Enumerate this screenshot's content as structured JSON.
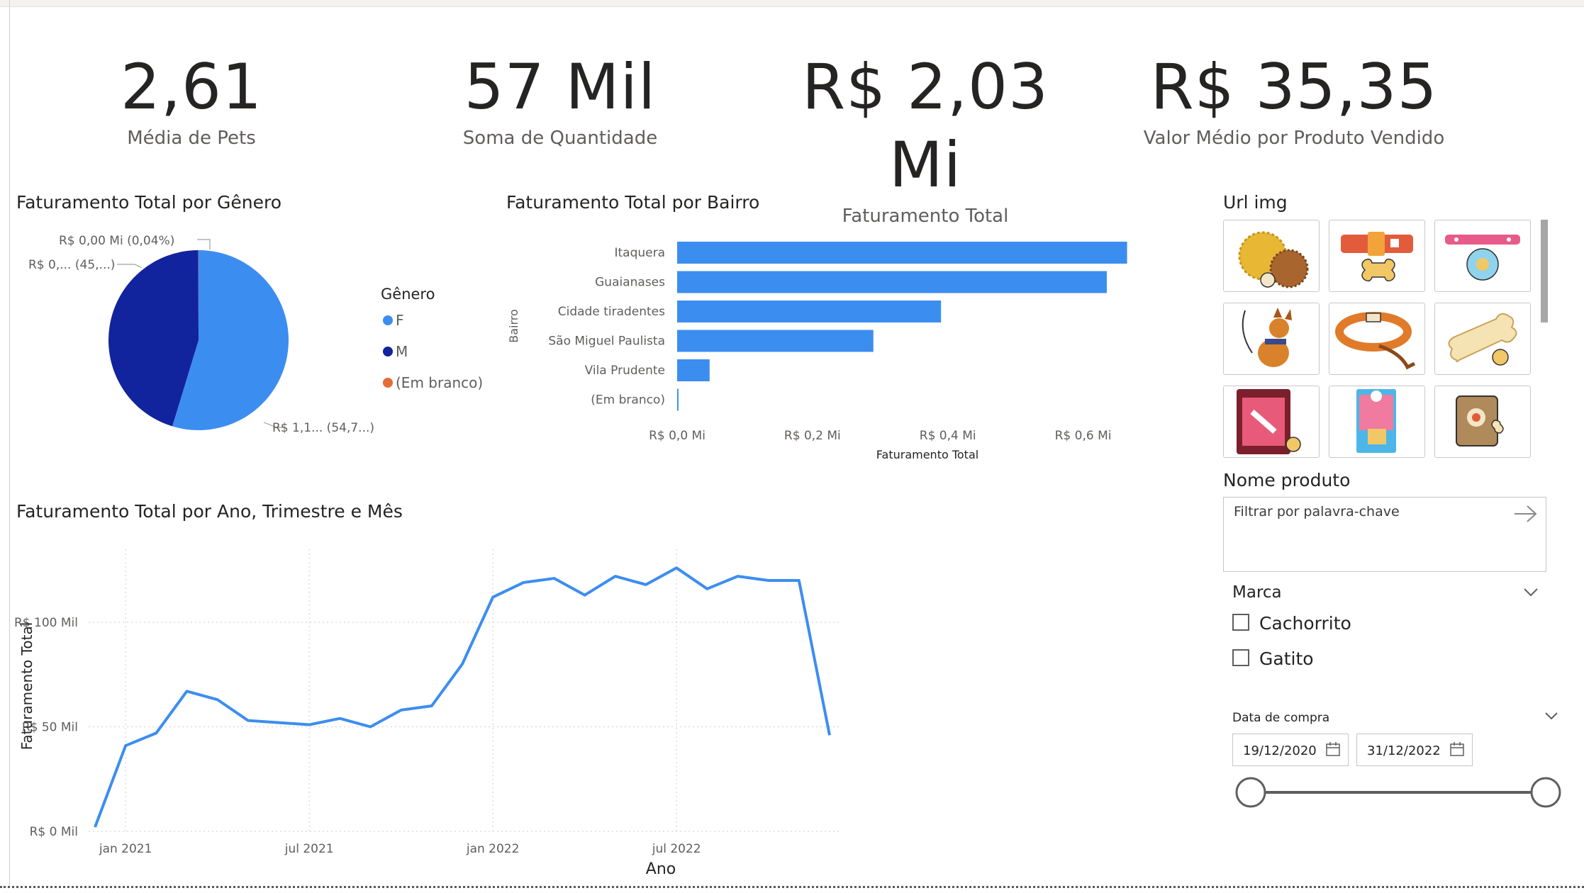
{
  "kpis": [
    {
      "value": "2,61",
      "label": "Média de Pets"
    },
    {
      "value": "57 Mil",
      "label": "Soma de Quantidade"
    },
    {
      "value": "R$ 2,03 Mi",
      "label": "Faturamento Total"
    },
    {
      "value": "R$ 35,35",
      "label": "Valor Médio por Produto Vendido"
    }
  ],
  "gender_chart": {
    "title": "Faturamento Total por Gênero",
    "legend_title": "Gênero",
    "legend": [
      "F",
      "M",
      "(Em branco)"
    ],
    "labels": {
      "blank": "R$ 0,00 Mi (0,04%)",
      "m": "R$ 0,... (45,...)",
      "f": "R$ 1,1... (54,7...)"
    },
    "colors": {
      "F": "#3c8df0",
      "M": "#12239e",
      "blank": "#e66c37"
    }
  },
  "bairro_chart": {
    "title": "Faturamento Total por Bairro",
    "ylabel": "Bairro",
    "xlabel": "Faturamento Total",
    "xticks": [
      "R$ 0,0 Mi",
      "R$ 0,2 Mi",
      "R$ 0,4 Mi",
      "R$ 0,6 Mi"
    ]
  },
  "line_chart": {
    "title": "Faturamento Total por Ano, Trimestre e Mês",
    "ylabel": "Faturamento Total",
    "xlabel": "Ano",
    "yticks": [
      "R$ 100 Mil",
      "R$ 50 Mil",
      "R$ 0 Mil"
    ],
    "xticks": [
      "jan 2021",
      "jul 2021",
      "jan 2022",
      "jul 2022"
    ]
  },
  "chart_data": [
    {
      "type": "pie",
      "categories": [
        "F",
        "M",
        "(Em branco)"
      ],
      "values": [
        54.7,
        45.26,
        0.04
      ],
      "value_unit": "%",
      "colors": [
        "#3c8df0",
        "#12239e",
        "#e66c37"
      ]
    },
    {
      "type": "bar",
      "orientation": "horizontal",
      "categories": [
        "Itaquera",
        "Guaianases",
        "Cidade tiradentes",
        "São Miguel Paulista",
        "Vila Prudente",
        "(Em branco)"
      ],
      "values": [
        0.665,
        0.635,
        0.39,
        0.29,
        0.048,
        0.002
      ],
      "value_unit": "R$ Mi",
      "xlim": [
        0,
        0.7
      ],
      "color": "#3c8df0"
    },
    {
      "type": "line",
      "x": [
        "2020-12",
        "2021-01",
        "2021-02",
        "2021-03",
        "2021-04",
        "2021-05",
        "2021-06",
        "2021-07",
        "2021-08",
        "2021-09",
        "2021-10",
        "2021-11",
        "2021-12",
        "2022-01",
        "2022-02",
        "2022-03",
        "2022-04",
        "2022-05",
        "2022-06",
        "2022-07",
        "2022-08",
        "2022-09",
        "2022-10",
        "2022-11",
        "2022-12"
      ],
      "values": [
        2,
        41,
        47,
        67,
        63,
        53,
        52,
        51,
        54,
        50,
        58,
        60,
        80,
        112,
        119,
        121,
        113,
        122,
        118,
        126,
        116,
        122,
        120,
        120,
        46
      ],
      "value_unit": "R$ Mil",
      "ylim": [
        0,
        140
      ],
      "color": "#3c8df0"
    }
  ],
  "images_panel": {
    "title": "Url img",
    "tiles": [
      "toy-balls-icon",
      "bone-collar-icon",
      "pink-collar-icon",
      "dog-on-leash-icon",
      "orange-collar-icon",
      "bone-treat-icon",
      "treat-bag-icon",
      "cat-food-can-icon",
      "dog-food-bag-icon"
    ]
  },
  "product_filter": {
    "title": "Nome produto",
    "placeholder": "Filtrar por palavra-chave"
  },
  "brand_filter": {
    "title": "Marca",
    "options": [
      "Cachorrito",
      "Gatito"
    ]
  },
  "date_filter": {
    "title": "Data de compra",
    "start": "19/12/2020",
    "end": "31/12/2022"
  }
}
